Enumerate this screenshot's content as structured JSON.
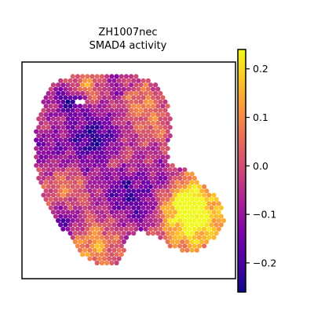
{
  "chart_data": {
    "type": "scatter",
    "subtype": "spatial-hexbin-map",
    "title_line1": "ZH1007nec",
    "title_line2": "SMAD4 activity",
    "xlabel": "",
    "ylabel": "",
    "colormap": "plasma",
    "colorbar": {
      "vmin": -0.26,
      "vmax": 0.24,
      "ticks": [
        0.2,
        0.1,
        0.0,
        -0.1,
        -0.2
      ],
      "tick_labels": [
        "0.2",
        "0.1",
        "0.0",
        "−0.1",
        "−0.2"
      ]
    },
    "grid": false,
    "legend": "none",
    "spot_value_range": [
      -0.26,
      0.24
    ]
  }
}
